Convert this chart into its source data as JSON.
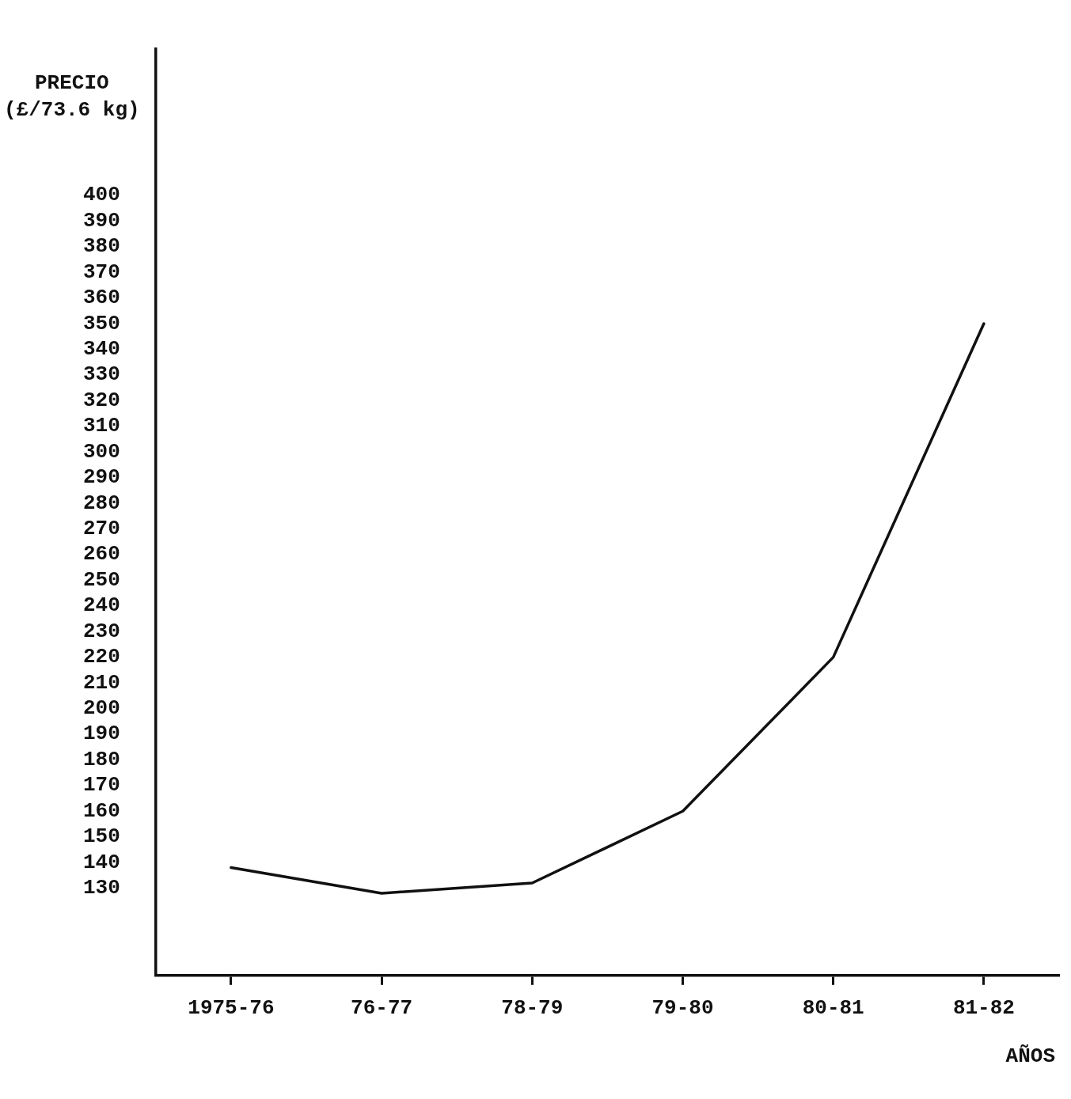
{
  "chart_data": {
    "type": "line",
    "ylabel": "PRECIO\n(£/73.6 kg)",
    "xlabel": "AÑOS",
    "categories": [
      "1975-76",
      "76-77",
      "78-79",
      "79-80",
      "80-81",
      "81-82"
    ],
    "series": [
      {
        "color": "#111111",
        "values": [
          138,
          128,
          132,
          160,
          220,
          350
        ]
      }
    ],
    "ylim": [
      96,
      457
    ],
    "yticks": [
      130,
      140,
      150,
      160,
      170,
      180,
      190,
      200,
      210,
      220,
      230,
      240,
      250,
      260,
      270,
      280,
      290,
      300,
      310,
      320,
      330,
      340,
      350,
      360,
      370,
      380,
      390,
      400
    ],
    "grid": false,
    "legend": false,
    "marker": "none",
    "line_style": "solid"
  }
}
